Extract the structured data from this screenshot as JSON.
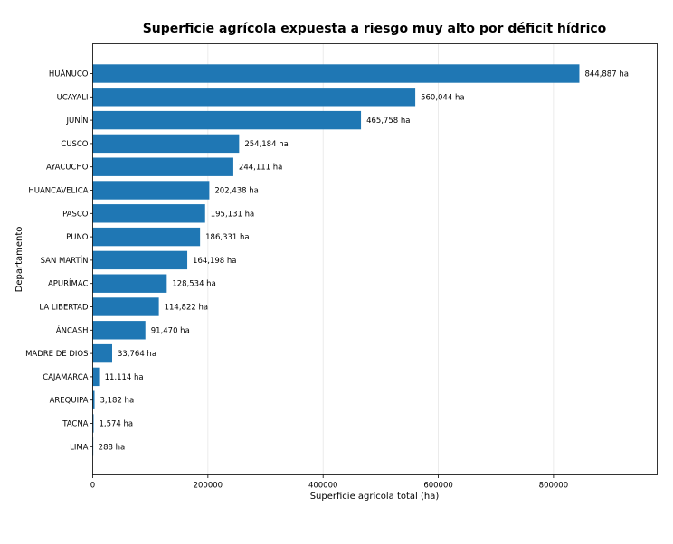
{
  "chart_data": {
    "type": "bar",
    "orientation": "horizontal",
    "title": "Superficie agrícola expuesta a riesgo muy alto por déficit hídrico",
    "xlabel": "Superficie agrícola total (ha)",
    "ylabel": "Departamento",
    "xlim": [
      0,
      980000
    ],
    "xticks": [
      0,
      200000,
      400000,
      600000,
      800000
    ],
    "xtick_labels": [
      "0",
      "200000",
      "400000",
      "600000",
      "800000"
    ],
    "grid": "vertical",
    "bar_color": "#1f77b4",
    "categories": [
      "HUÁNUCO",
      "UCAYALI",
      "JUNÍN",
      "CUSCO",
      "AYACUCHO",
      "HUANCAVELICA",
      "PASCO",
      "PUNO",
      "SAN MARTÍN",
      "APURÍMAC",
      "LA LIBERTAD",
      "ÁNCASH",
      "MADRE DE DIOS",
      "CAJAMARCA",
      "AREQUIPA",
      "TACNA",
      "LIMA"
    ],
    "values": [
      844887,
      560044,
      465758,
      254184,
      244111,
      202438,
      195131,
      186331,
      164198,
      128534,
      114822,
      91470,
      33764,
      11114,
      3182,
      1574,
      288
    ],
    "value_labels": [
      "844,887 ha",
      "560,044 ha",
      "465,758 ha",
      "254,184 ha",
      "244,111 ha",
      "202,438 ha",
      "195,131 ha",
      "186,331 ha",
      "164,198 ha",
      "128,534 ha",
      "114,822 ha",
      "91,470 ha",
      "33,764 ha",
      "11,114 ha",
      "3,182 ha",
      "1,574 ha",
      "288 ha"
    ]
  }
}
